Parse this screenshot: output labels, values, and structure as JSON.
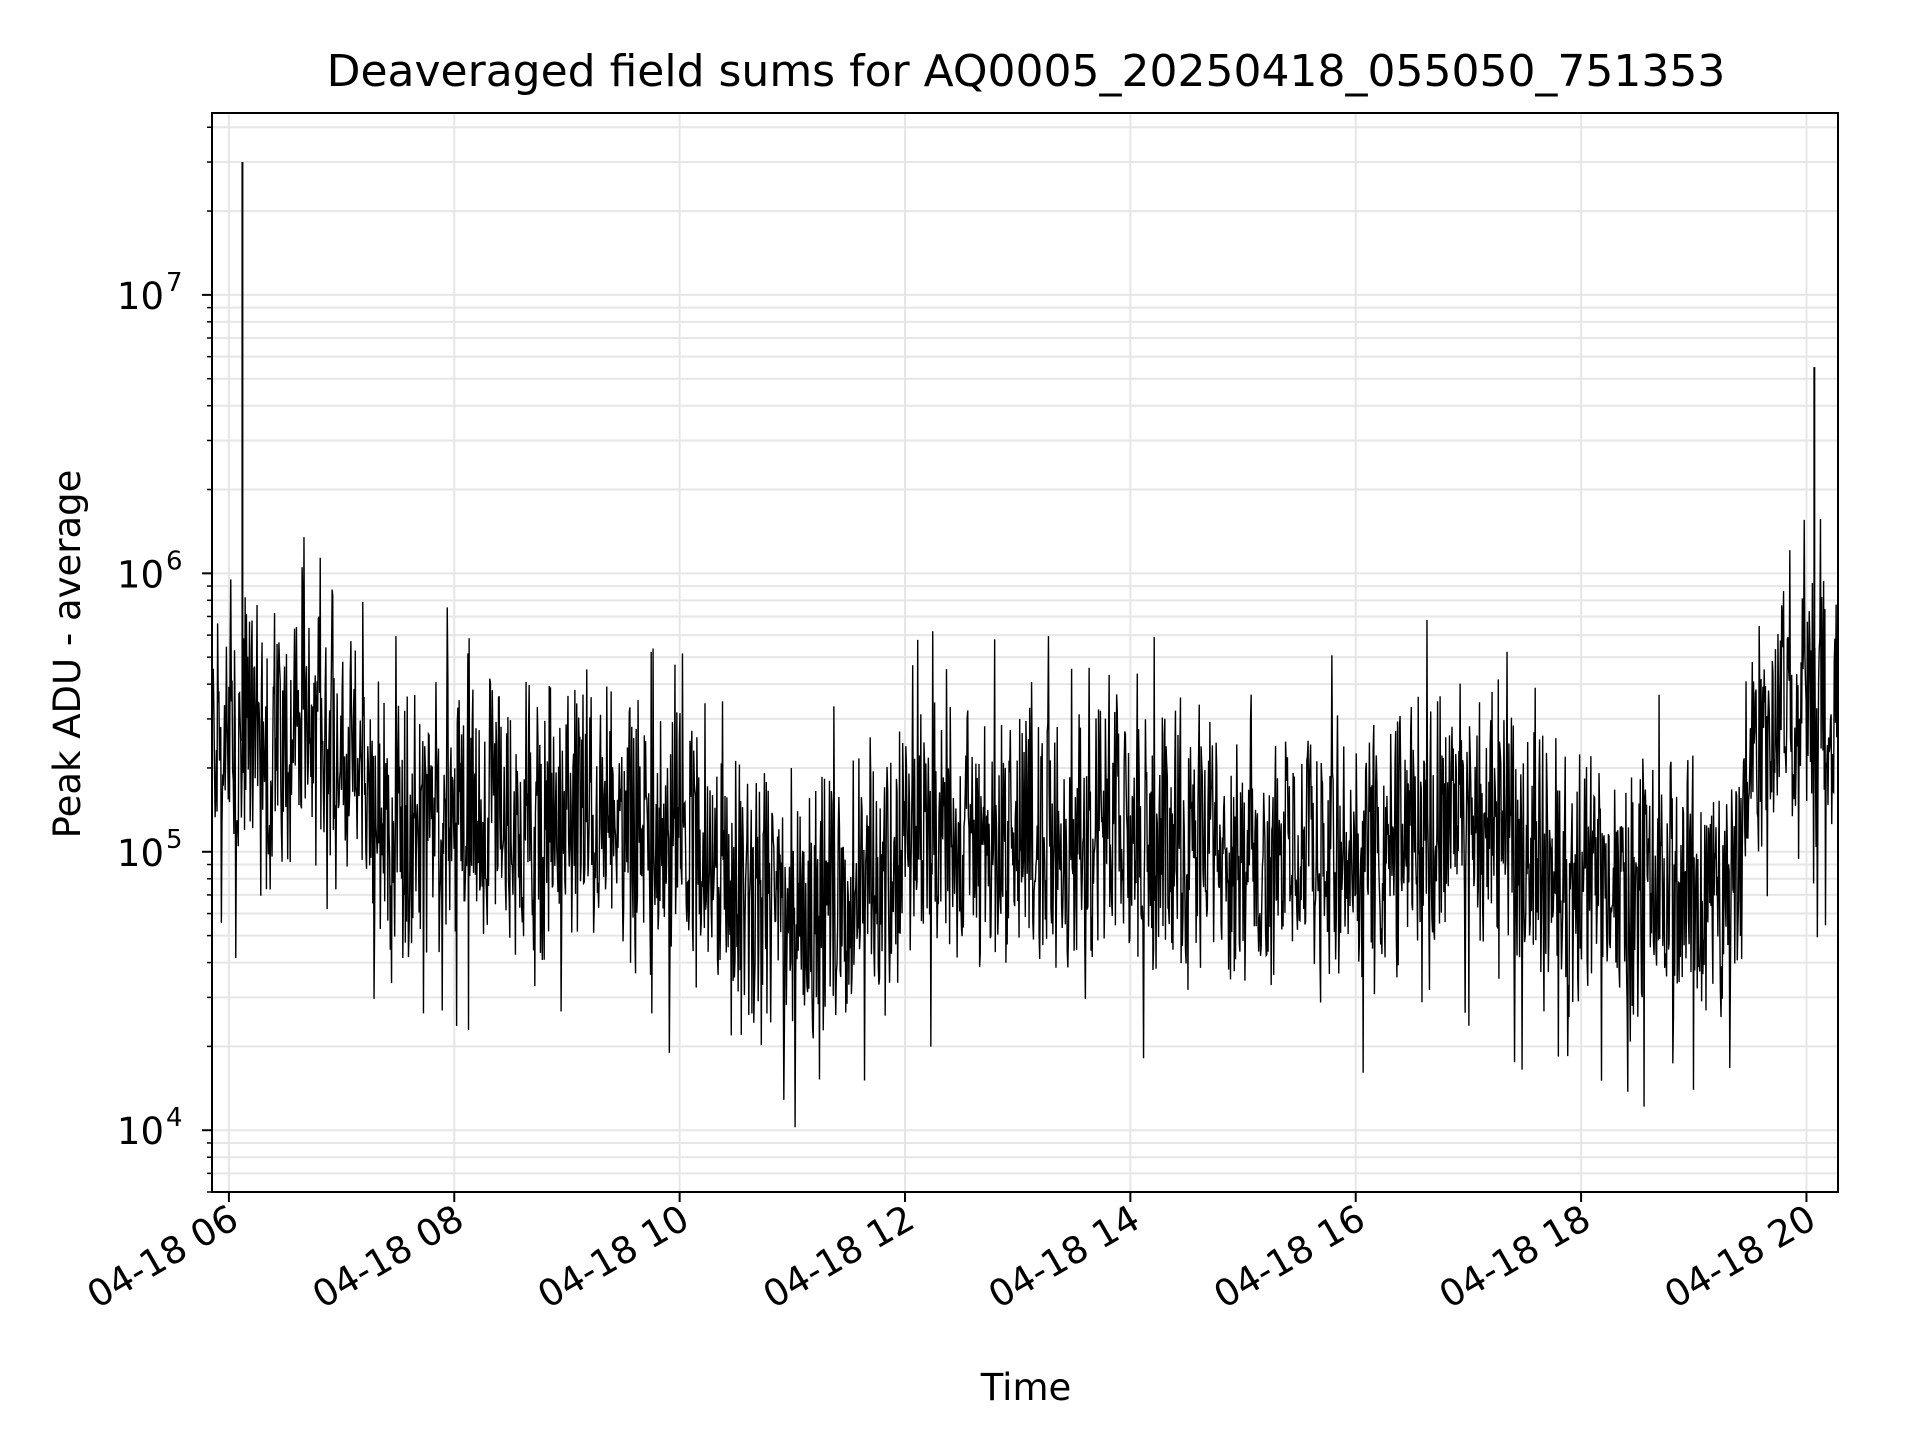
{
  "chart_data": {
    "type": "line",
    "title": "Deaveraged field sums for AQ0005_20250418_055050_751353",
    "xlabel": "Time",
    "ylabel": "Peak ADU - average",
    "yscale": "log",
    "grid": true,
    "x_ticks": [
      "04-18 06",
      "04-18 08",
      "04-18 10",
      "04-18 12",
      "04-18 14",
      "04-18 16",
      "04-18 18",
      "04-18 20"
    ],
    "x_tick_hours": [
      6,
      8,
      10,
      12,
      14,
      16,
      18,
      20
    ],
    "y_ticks": [
      {
        "base": "10",
        "exp": "4",
        "value": 10000
      },
      {
        "base": "10",
        "exp": "5",
        "value": 100000
      },
      {
        "base": "10",
        "exp": "6",
        "value": 1000000
      },
      {
        "base": "10",
        "exp": "7",
        "value": 10000000
      }
    ],
    "xlim_hours": [
      5.85,
      20.28
    ],
    "ylim": [
      6000,
      45000000
    ],
    "line_color": "#000000",
    "grid_color": "#e6e6e6",
    "series": [
      {
        "name": "",
        "points": [
          [
            5.85,
            230000
          ],
          [
            5.9,
            300000
          ],
          [
            5.95,
            180000
          ],
          [
            6.0,
            260000
          ],
          [
            6.05,
            200000
          ],
          [
            6.12,
            30000000
          ],
          [
            6.13,
            250000
          ],
          [
            6.2,
            320000
          ],
          [
            6.3,
            210000
          ],
          [
            6.4,
            280000
          ],
          [
            6.5,
            230000
          ],
          [
            6.6,
            300000
          ],
          [
            6.7,
            220000
          ],
          [
            6.8,
            260000
          ],
          [
            6.9,
            240000
          ],
          [
            7.0,
            210000
          ],
          [
            7.1,
            190000
          ],
          [
            7.2,
            170000
          ],
          [
            7.3,
            130000
          ],
          [
            7.4,
            120000
          ],
          [
            7.5,
            135000
          ],
          [
            7.6,
            125000
          ],
          [
            7.7,
            140000
          ],
          [
            7.8,
            130000
          ],
          [
            7.9,
            145000
          ],
          [
            8.0,
            130000
          ],
          [
            8.1,
            140000
          ],
          [
            8.2,
            125000
          ],
          [
            8.3,
            150000
          ],
          [
            8.4,
            135000
          ],
          [
            8.5,
            140000
          ],
          [
            8.6,
            130000
          ],
          [
            8.7,
            145000
          ],
          [
            8.8,
            135000
          ],
          [
            8.9,
            140000
          ],
          [
            9.0,
            135000
          ],
          [
            9.1,
            150000
          ],
          [
            9.2,
            140000
          ],
          [
            9.3,
            130000
          ],
          [
            9.4,
            125000
          ],
          [
            9.5,
            120000
          ],
          [
            9.6,
            115000
          ],
          [
            9.7,
            110000
          ],
          [
            9.8,
            115000
          ],
          [
            9.9,
            105000
          ],
          [
            10.0,
            110000
          ],
          [
            10.1,
            100000
          ],
          [
            10.2,
            90000
          ],
          [
            10.3,
            80000
          ],
          [
            10.4,
            70000
          ],
          [
            10.5,
            65000
          ],
          [
            10.6,
            60000
          ],
          [
            10.7,
            62000
          ],
          [
            10.8,
            65000
          ],
          [
            10.9,
            60000
          ],
          [
            11.0,
            62000
          ],
          [
            11.1,
            64000
          ],
          [
            11.2,
            66000
          ],
          [
            11.3,
            68000
          ],
          [
            11.4,
            70000
          ],
          [
            11.5,
            72000
          ],
          [
            11.6,
            75000
          ],
          [
            11.7,
            80000
          ],
          [
            11.8,
            85000
          ],
          [
            11.9,
            90000
          ],
          [
            12.0,
            100000
          ],
          [
            12.1,
            110000
          ],
          [
            12.2,
            115000
          ],
          [
            12.3,
            110000
          ],
          [
            12.4,
            115000
          ],
          [
            12.5,
            112000
          ],
          [
            12.6,
            110000
          ],
          [
            12.7,
            108000
          ],
          [
            12.8,
            110000
          ],
          [
            12.9,
            105000
          ],
          [
            13.0,
            110000
          ],
          [
            13.1,
            112000
          ],
          [
            13.2,
            108000
          ],
          [
            13.3,
            110000
          ],
          [
            13.4,
            115000
          ],
          [
            13.5,
            110000
          ],
          [
            13.6,
            112000
          ],
          [
            13.7,
            110000
          ],
          [
            13.8,
            108000
          ],
          [
            13.9,
            110000
          ],
          [
            14.0,
            112000
          ],
          [
            14.1,
            110000
          ],
          [
            14.2,
            108000
          ],
          [
            14.3,
            110000
          ],
          [
            14.4,
            112000
          ],
          [
            14.5,
            110000
          ],
          [
            14.6,
            115000
          ],
          [
            14.7,
            110000
          ],
          [
            14.8,
            120000
          ],
          [
            14.9,
            105000
          ],
          [
            15.0,
            100000
          ],
          [
            15.1,
            98000
          ],
          [
            15.2,
            100000
          ],
          [
            15.3,
            95000
          ],
          [
            15.4,
            98000
          ],
          [
            15.5,
            100000
          ],
          [
            15.6,
            95000
          ],
          [
            15.7,
            98000
          ],
          [
            15.8,
            96000
          ],
          [
            15.9,
            94000
          ],
          [
            16.0,
            95000
          ],
          [
            16.1,
            98000
          ],
          [
            16.2,
            100000
          ],
          [
            16.3,
            105000
          ],
          [
            16.4,
            110000
          ],
          [
            16.5,
            115000
          ],
          [
            16.6,
            120000
          ],
          [
            16.7,
            125000
          ],
          [
            16.8,
            130000
          ],
          [
            16.9,
            135000
          ],
          [
            17.0,
            140000
          ],
          [
            17.1,
            130000
          ],
          [
            17.2,
            120000
          ],
          [
            17.3,
            115000
          ],
          [
            17.4,
            110000
          ],
          [
            17.5,
            100000
          ],
          [
            17.6,
            95000
          ],
          [
            17.7,
            90000
          ],
          [
            17.8,
            85000
          ],
          [
            17.9,
            82000
          ],
          [
            18.0,
            80000
          ],
          [
            18.1,
            78000
          ],
          [
            18.2,
            76000
          ],
          [
            18.3,
            74000
          ],
          [
            18.4,
            72000
          ],
          [
            18.5,
            70000
          ],
          [
            18.6,
            70000
          ],
          [
            18.7,
            68000
          ],
          [
            18.8,
            70000
          ],
          [
            18.9,
            72000
          ],
          [
            19.0,
            70000
          ],
          [
            19.1,
            68000
          ],
          [
            19.2,
            70000
          ],
          [
            19.3,
            72000
          ],
          [
            19.4,
            80000
          ],
          [
            19.5,
            250000
          ],
          [
            19.6,
            300000
          ],
          [
            19.7,
            280000
          ],
          [
            19.8,
            320000
          ],
          [
            19.9,
            300000
          ],
          [
            20.0,
            310000
          ],
          [
            20.07,
            5500000
          ],
          [
            20.1,
            320000
          ],
          [
            20.2,
            300000
          ],
          [
            20.28,
            330000
          ]
        ]
      }
    ]
  }
}
